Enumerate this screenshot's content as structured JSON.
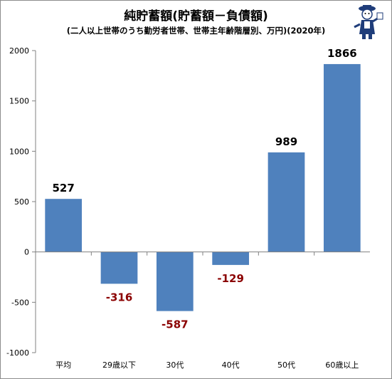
{
  "chart_data": {
    "type": "bar",
    "title": "純貯蓄額(貯蓄額－負債額)",
    "subtitle": "(二人以上世帯のうち勤労者世帯、世帯主年齢階層別、万円)(2020年)",
    "categories": [
      "平均",
      "29歳以下",
      "30代",
      "40代",
      "50代",
      "60歳以上"
    ],
    "values": [
      527,
      -316,
      -587,
      -129,
      989,
      1866
    ],
    "data_labels": [
      "527",
      "-316",
      "-587",
      "-129",
      "989",
      "1866"
    ],
    "ylim": [
      -1000,
      2000
    ],
    "yticks": [
      2000,
      1500,
      1000,
      500,
      0,
      -500,
      -1000
    ],
    "ytick_labels": [
      "2000",
      "1500",
      "1000",
      "500",
      "0",
      "-500",
      "-1000"
    ],
    "grid": false,
    "legend": "none"
  },
  "colors": {
    "bar": "#4f81bd",
    "positive_label": "#000000",
    "negative_label": "#8b0000",
    "axis": "#808080"
  }
}
